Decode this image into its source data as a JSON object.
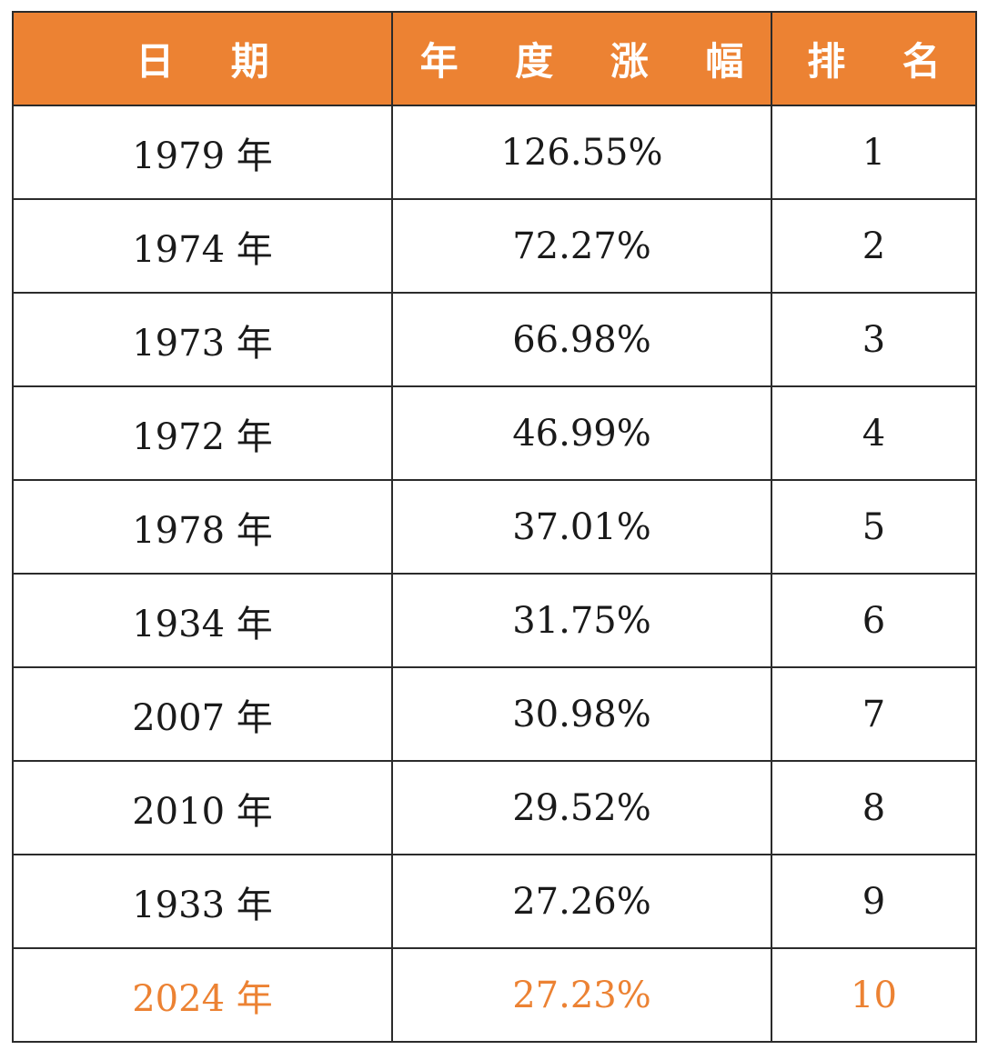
{
  "chart_data": {
    "type": "table",
    "columns": [
      "日 期",
      "年 度 涨 幅",
      "排 名"
    ],
    "rows": [
      {
        "date": "1979 年",
        "gain": "126.55%",
        "rank": "1"
      },
      {
        "date": "1974 年",
        "gain": "72.27%",
        "rank": "2"
      },
      {
        "date": "1973 年",
        "gain": "66.98%",
        "rank": "3"
      },
      {
        "date": "1972 年",
        "gain": "46.99%",
        "rank": "4"
      },
      {
        "date": "1978 年",
        "gain": "37.01%",
        "rank": "5"
      },
      {
        "date": "1934 年",
        "gain": "31.75%",
        "rank": "6"
      },
      {
        "date": "2007 年",
        "gain": "30.98%",
        "rank": "7"
      },
      {
        "date": "2010 年",
        "gain": "29.52%",
        "rank": "8"
      },
      {
        "date": "1933 年",
        "gain": "27.26%",
        "rank": "9"
      },
      {
        "date": "2024 年",
        "gain": "27.23%",
        "rank": "10"
      }
    ],
    "highlight_row": 9
  },
  "colors": {
    "header_bg": "#ec8233",
    "header_text": "#ffffff",
    "highlight_text": "#ec8233",
    "body_text": "#1a1a1a",
    "border": "#2b2b2b"
  }
}
